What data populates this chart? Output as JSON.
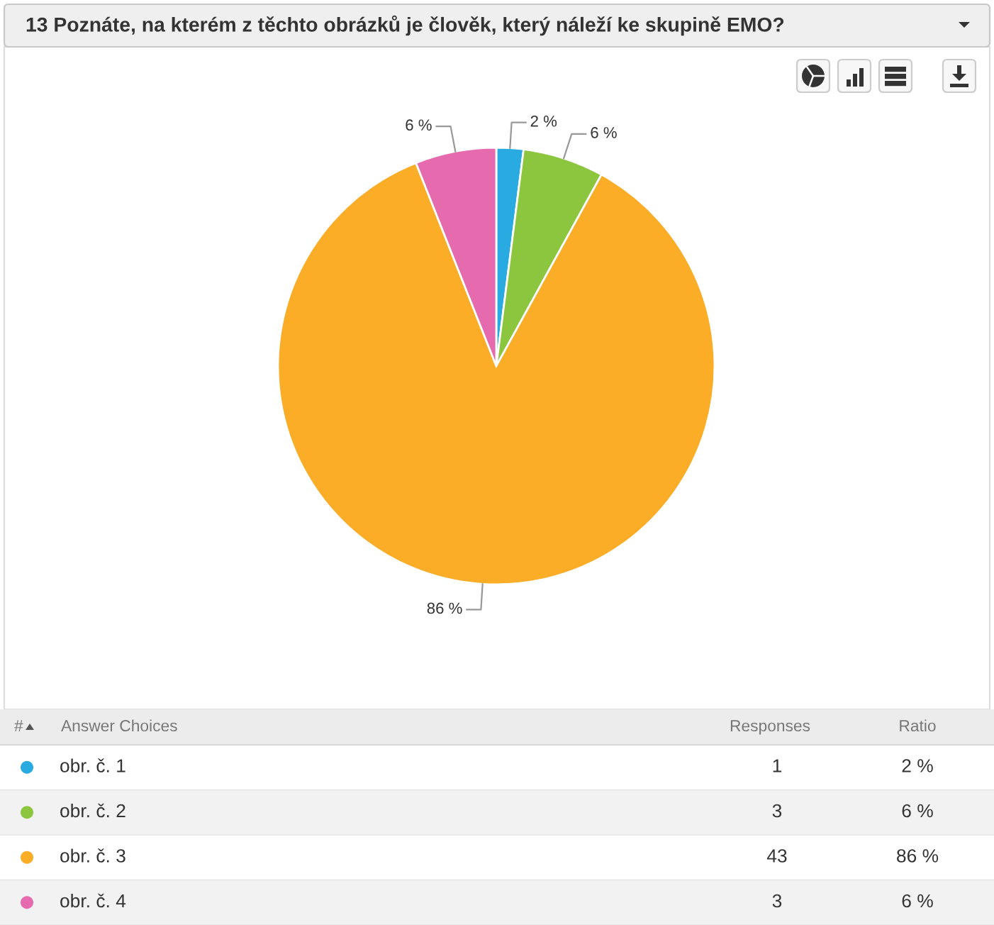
{
  "chart_data": {
    "type": "pie",
    "title": "13 Poznáte, na kterém z těchto obrázků je člověk, který náleží ke skupině EMO?",
    "categories": [
      "obr. č. 1",
      "obr. č. 2",
      "obr. č. 3",
      "obr. č. 4"
    ],
    "values": [
      2,
      6,
      86,
      6
    ],
    "colors": [
      "#29abe2",
      "#8cc63f",
      "#fbad27",
      "#e66aae"
    ],
    "value_labels": [
      "2 %",
      "6 %",
      "86 %",
      "6 %"
    ],
    "legend": "bottom",
    "annotations": [
      "#",
      "Answer Choices",
      "Responses",
      "Ratio",
      "1",
      "3",
      "43",
      "3"
    ]
  }
}
